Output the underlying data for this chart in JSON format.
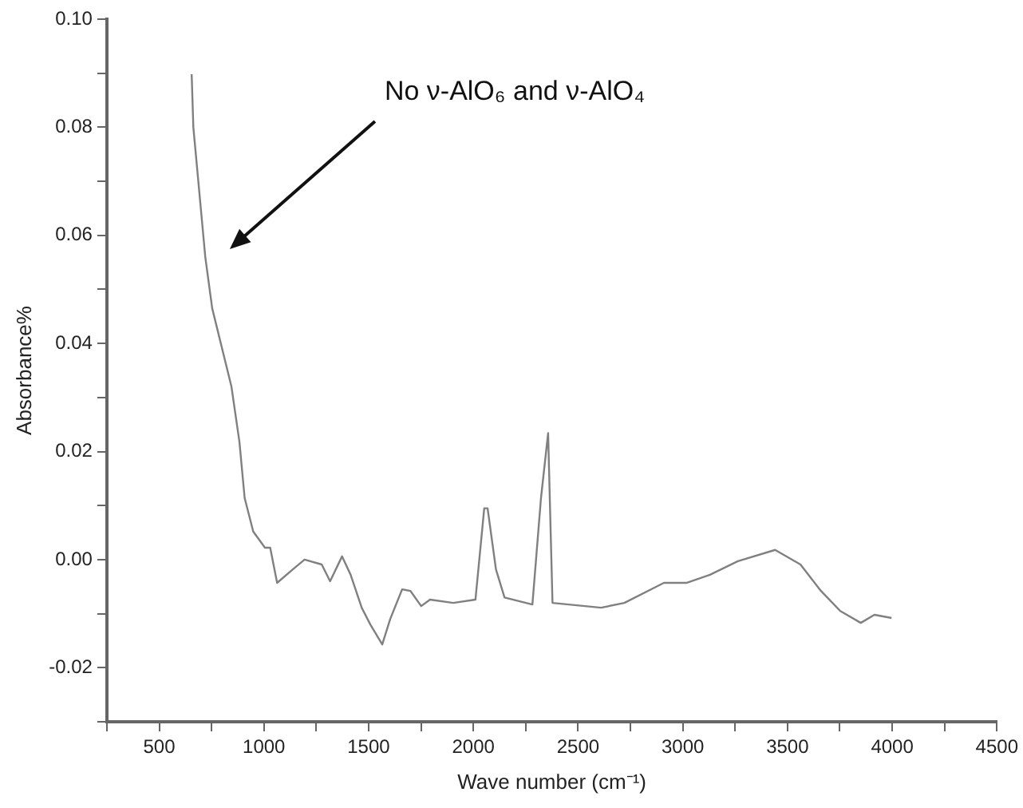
{
  "chart_data": {
    "type": "line",
    "xlabel": "Wave number (cm⁻¹)",
    "ylabel": "Absorbance%",
    "x": [
      655,
      663,
      720,
      753,
      845,
      883,
      908,
      949,
      1005,
      1030,
      1063,
      1138,
      1194,
      1276,
      1316,
      1373,
      1414,
      1467,
      1508,
      1565,
      1603,
      1660,
      1700,
      1751,
      1793,
      1904,
      2010,
      2052,
      2068,
      2108,
      2149,
      2282,
      2323,
      2357,
      2378,
      2610,
      2721,
      2910,
      3017,
      3130,
      3263,
      3441,
      3562,
      3660,
      3752,
      3850,
      3915,
      3997
    ],
    "series": [
      {
        "color": "#808080",
        "values": [
          0.0898,
          0.08,
          0.056,
          0.0465,
          0.032,
          0.0218,
          0.0114,
          0.0052,
          0.0022,
          0.0022,
          -0.0043,
          -0.0018,
          0.0,
          -0.0009,
          -0.004,
          0.0006,
          -0.0028,
          -0.0089,
          -0.012,
          -0.0157,
          -0.011,
          -0.0055,
          -0.0058,
          -0.0086,
          -0.0074,
          -0.008,
          -0.0074,
          0.0095,
          0.0095,
          -0.0018,
          -0.007,
          -0.0083,
          0.0114,
          0.0234,
          -0.008,
          -0.0089,
          -0.008,
          -0.0043,
          -0.0043,
          -0.0028,
          -0.0003,
          0.0018,
          -0.0009,
          -0.0058,
          -0.0095,
          -0.0117,
          -0.0102,
          -0.0108
        ]
      }
    ],
    "xlim": [
      250,
      4500
    ],
    "xticks": [
      {
        "value": 250,
        "label": null
      },
      500,
      {
        "value": 750,
        "label": null
      },
      1000,
      {
        "value": 1250,
        "label": null
      },
      1500,
      {
        "value": 1750,
        "label": null
      },
      2000,
      {
        "value": 2250,
        "label": null
      },
      2500,
      {
        "value": 2750,
        "label": null
      },
      3000,
      {
        "value": 3250,
        "label": null
      },
      3500,
      {
        "value": 3750,
        "label": null
      },
      4000,
      {
        "value": 4250,
        "label": null
      },
      4500
    ],
    "ylim": [
      -0.03,
      0.1
    ],
    "yticks": [
      {
        "value": -0.03,
        "label": null
      },
      {
        "value": -0.02,
        "label": "-0.02"
      },
      {
        "value": -0.01,
        "label": null
      },
      {
        "value": 0,
        "label": "0.00"
      },
      {
        "value": 0.01,
        "label": null
      },
      {
        "value": 0.02,
        "label": "0.02"
      },
      {
        "value": 0.03,
        "label": null
      },
      {
        "value": 0.04,
        "label": "0.04"
      },
      {
        "value": 0.05,
        "label": null
      },
      {
        "value": 0.06,
        "label": "0.06"
      },
      {
        "value": 0.07,
        "label": null
      },
      {
        "value": 0.08,
        "label": "0.08"
      },
      {
        "value": 0.09,
        "label": null
      },
      {
        "value": 0.1,
        "label": "0.10"
      }
    ],
    "annotations": [
      "No ν-AlO₆ and ν-AlO₄"
    ],
    "grid": false,
    "legend": false,
    "marker": "none",
    "line_style": "solid"
  }
}
